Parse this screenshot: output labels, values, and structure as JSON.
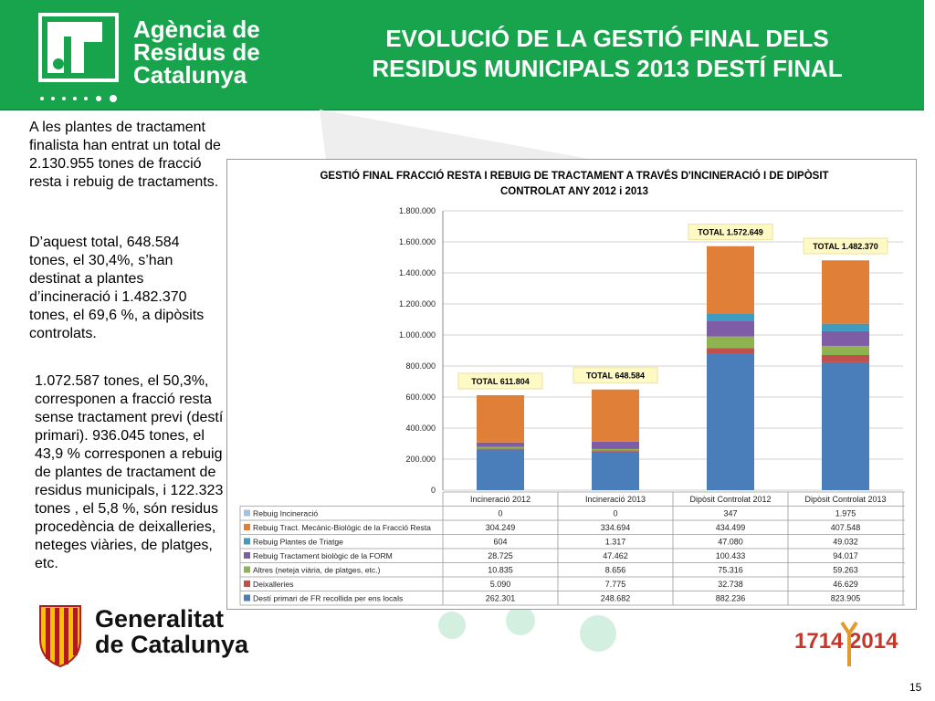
{
  "header": {
    "agency_name": "Agència de\nResidus de\nCatalunya",
    "title": "EVOLUCIÓ DE LA GESTIÓ FINAL DELS\nRESIDUS MUNICIPALS 2013   DESTÍ FINAL",
    "accent_color": "#18a44c"
  },
  "text": {
    "p1": "A les plantes de tractament finalista han entrat un total de 2.130.955 tones de fracció resta i rebuig de tractaments.",
    "p2": "D’aquest total, 648.584 tones, el 30,4%, s’han destinat a plantes d’incineració i 1.482.370 tones, el 69,6 %, a dipòsits controlats.",
    "p3": "1.072.587 tones, el 50,3%, corresponen a fracció resta sense tractament previ (destí primari). 936.045 tones, el 43,9 % corresponen  a rebuig de plantes de tractament de residus municipals, i 122.323 tones , el 5,8 %, són residus procedència de deixalleries, neteges viàries, de platges, etc."
  },
  "footer": {
    "gov_name": "Generalitat\nde Catalunya",
    "year_logo": "1714 2014",
    "page_number": "15"
  },
  "chart_data": {
    "type": "bar",
    "stacked": true,
    "title": "GESTIÓ FINAL FRACCIÓ RESTA I REBUIG DE TRACTAMENT A TRAVÉS D'INCINERACIÓ I DE DIPÒSIT\nCONTROLAT ANY 2012 i 2013",
    "categories": [
      "Incineració 2012",
      "Incineració 2013",
      "Dipòsit Controlat 2012",
      "Dipòsit Controlat 2013"
    ],
    "ylim": [
      0,
      1800000
    ],
    "yticks": [
      "0",
      "200.000",
      "400.000",
      "600.000",
      "800.000",
      "1.000.000",
      "1.200.000",
      "1.400.000",
      "1.600.000",
      "1.800.000"
    ],
    "totals": [
      "TOTAL 611.804",
      "TOTAL 648.584",
      "TOTAL 1.572.649",
      "TOTAL 1.482.370"
    ],
    "grid": true,
    "legend_position": "bottom-table",
    "series": [
      {
        "name": "Rebuig Incineració",
        "color": "#9dc3e6",
        "values": [
          0,
          0,
          347,
          1975
        ],
        "labels": [
          "0",
          "0",
          "347",
          "1.975"
        ]
      },
      {
        "name": "Rebuig Tract. Mecànic-Biològic de la Fracció Resta",
        "color": "#e07f38",
        "values": [
          304249,
          334694,
          434499,
          407548
        ],
        "labels": [
          "304.249",
          "334.694",
          "434.499",
          "407.548"
        ]
      },
      {
        "name": "Rebuig Plantes de Triatge",
        "color": "#3f9bbf",
        "values": [
          604,
          1317,
          47080,
          49032
        ],
        "labels": [
          "604",
          "1.317",
          "47.080",
          "49.032"
        ]
      },
      {
        "name": "Rebuig Tractament biològic de la FORM",
        "color": "#7e5ca6",
        "values": [
          28725,
          47462,
          100433,
          94017
        ],
        "labels": [
          "28.725",
          "47.462",
          "100.433",
          "94.017"
        ]
      },
      {
        "name": "Altres (neteja viària, de platges, etc.)",
        "color": "#8fb34f",
        "values": [
          10835,
          8656,
          75316,
          59263
        ],
        "labels": [
          "10.835",
          "8.656",
          "75.316",
          "59.263"
        ]
      },
      {
        "name": "Deixalleries",
        "color": "#c0504d",
        "values": [
          5090,
          7775,
          32738,
          46629
        ],
        "labels": [
          "5.090",
          "7.775",
          "32.738",
          "46.629"
        ]
      },
      {
        "name": "Destí primari de FR recollida per ens locals",
        "color": "#4a7ebb",
        "values": [
          262301,
          248682,
          882236,
          823905
        ],
        "labels": [
          "262.301",
          "248.682",
          "882.236",
          "823.905"
        ]
      }
    ]
  }
}
